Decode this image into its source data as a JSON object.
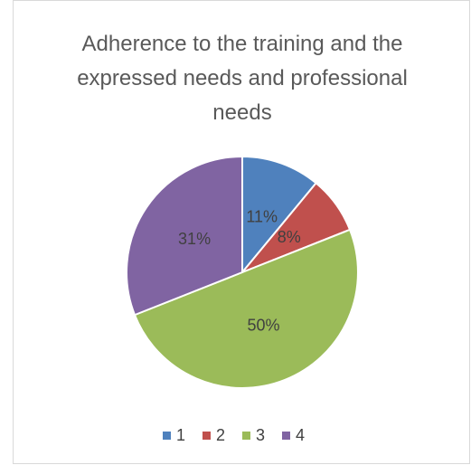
{
  "chart_data": {
    "type": "pie",
    "title": "Adherence to the training and the expressed needs and professional needs",
    "categories": [
      "1",
      "2",
      "3",
      "4"
    ],
    "values": [
      11,
      8,
      50,
      31
    ],
    "value_labels": [
      "11%",
      "8%",
      "50%",
      "31%"
    ],
    "colors": [
      "#4f81bd",
      "#c0504d",
      "#9bbb59",
      "#8064a2"
    ],
    "legend": "bottom"
  }
}
